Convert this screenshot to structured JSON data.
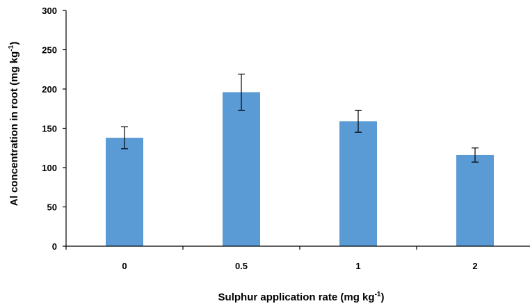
{
  "chart_data": {
    "type": "bar",
    "categories": [
      "0",
      "0.5",
      "1",
      "2"
    ],
    "values": [
      138,
      196,
      159,
      116
    ],
    "error": [
      14,
      23,
      14,
      9
    ],
    "xlabel": {
      "text": "Sulphur application rate (mg kg",
      "sup": "-1",
      "end": ")"
    },
    "ylabel": {
      "text": "Al concentration in root (mg kg",
      "sup": "-1",
      "end": ")"
    },
    "ylim": [
      0,
      300
    ],
    "yticks": [
      0,
      50,
      100,
      150,
      200,
      250,
      300
    ],
    "grid": false,
    "legend": "none",
    "bar_color": "#5B9BD5",
    "axis_color": "#000000"
  }
}
